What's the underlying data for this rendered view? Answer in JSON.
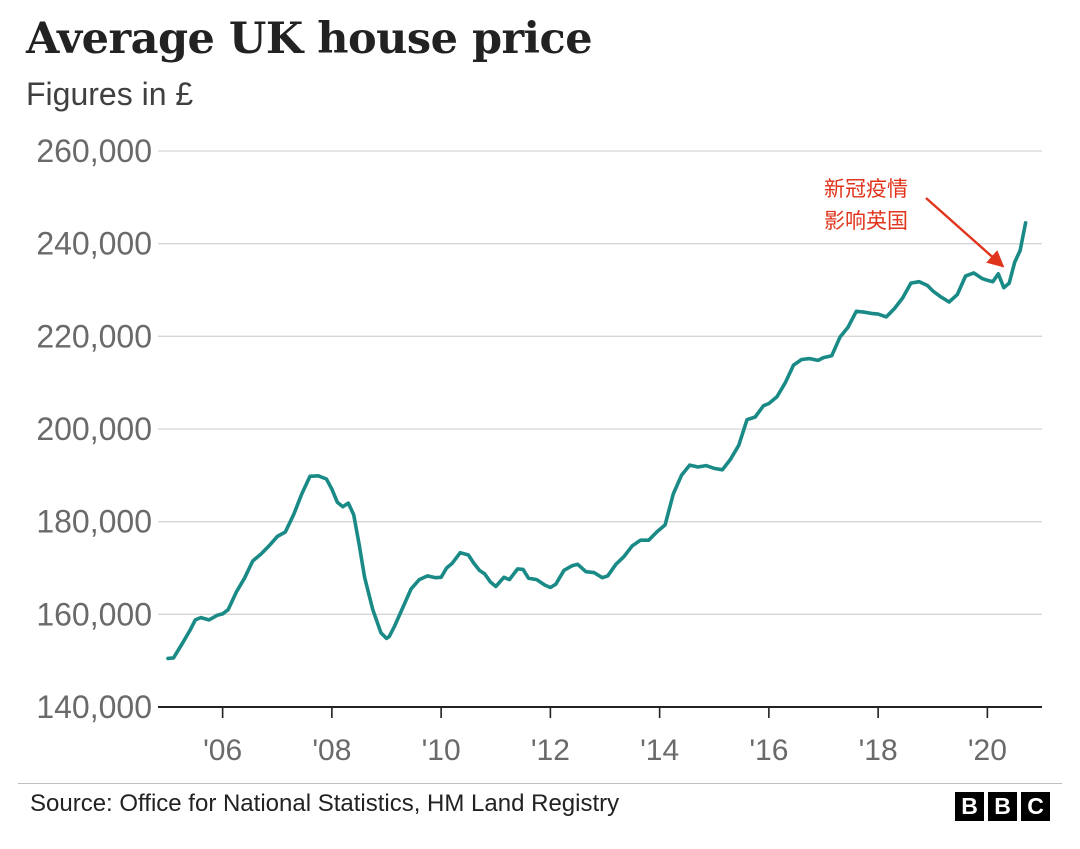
{
  "header": {
    "title": "Average UK house price",
    "subtitle": "Figures in £"
  },
  "footer": {
    "source": "Source: Office for National Statistics, HM Land Registry",
    "logo_letters": [
      "B",
      "B",
      "C"
    ]
  },
  "colors": {
    "line": "#1a8a86",
    "annotation": "#e0341c",
    "grid": "#d6d6d6",
    "axis": "#222222",
    "tick_text": "#6a6a6a"
  },
  "chart_data": {
    "type": "line",
    "title": "Average UK house price",
    "subtitle": "Figures in £",
    "xlabel": "",
    "ylabel": "",
    "xlim": [
      2005.0,
      2021.0
    ],
    "ylim": [
      140000,
      260000
    ],
    "y_ticks": [
      140000,
      160000,
      180000,
      200000,
      220000,
      240000,
      260000
    ],
    "y_tick_labels": [
      "140,000",
      "160,000",
      "180,000",
      "200,000",
      "220,000",
      "240,000",
      "260,000"
    ],
    "x_ticks": [
      2006,
      2008,
      2010,
      2012,
      2014,
      2016,
      2018,
      2020
    ],
    "x_tick_labels": [
      "'06",
      "'08",
      "'10",
      "'12",
      "'14",
      "'16",
      "'18",
      "'20"
    ],
    "grid": true,
    "series": [
      {
        "name": "Average UK house price",
        "x": [
          2005.0,
          2005.1,
          2005.25,
          2005.4,
          2005.5,
          2005.6,
          2005.75,
          2005.9,
          2006.0,
          2006.1,
          2006.25,
          2006.4,
          2006.55,
          2006.7,
          2006.85,
          2007.0,
          2007.15,
          2007.3,
          2007.45,
          2007.6,
          2007.75,
          2007.9,
          2008.0,
          2008.1,
          2008.2,
          2008.3,
          2008.4,
          2008.5,
          2008.6,
          2008.75,
          2008.9,
          2009.0,
          2009.05,
          2009.15,
          2009.3,
          2009.45,
          2009.6,
          2009.75,
          2009.9,
          2010.0,
          2010.1,
          2010.2,
          2010.35,
          2010.5,
          2010.6,
          2010.7,
          2010.8,
          2010.9,
          2011.0,
          2011.15,
          2011.25,
          2011.4,
          2011.5,
          2011.6,
          2011.75,
          2011.9,
          2012.0,
          2012.1,
          2012.25,
          2012.4,
          2012.5,
          2012.65,
          2012.8,
          2012.95,
          2013.05,
          2013.2,
          2013.35,
          2013.5,
          2013.65,
          2013.8,
          2013.95,
          2014.1,
          2014.25,
          2014.4,
          2014.55,
          2014.7,
          2014.85,
          2015.0,
          2015.15,
          2015.3,
          2015.45,
          2015.6,
          2015.75,
          2015.9,
          2016.0,
          2016.15,
          2016.3,
          2016.45,
          2016.6,
          2016.75,
          2016.9,
          2017.0,
          2017.15,
          2017.3,
          2017.45,
          2017.6,
          2017.75,
          2017.9,
          2018.0,
          2018.15,
          2018.3,
          2018.45,
          2018.6,
          2018.75,
          2018.9,
          2019.0,
          2019.15,
          2019.3,
          2019.45,
          2019.6,
          2019.75,
          2019.9,
          2020.0,
          2020.1,
          2020.2,
          2020.3,
          2020.4,
          2020.5,
          2020.6,
          2020.7
        ],
        "values": [
          150500,
          150600,
          153500,
          156500,
          158800,
          159300,
          158800,
          159800,
          160100,
          161000,
          164800,
          167800,
          171500,
          173000,
          174800,
          176800,
          177800,
          181500,
          186000,
          189800,
          189900,
          189200,
          187000,
          184200,
          183200,
          184000,
          181500,
          175000,
          168000,
          161000,
          156000,
          154800,
          155200,
          157500,
          161500,
          165500,
          167500,
          168300,
          167900,
          168000,
          170000,
          171000,
          173300,
          172800,
          171000,
          169500,
          168700,
          167000,
          166000,
          168000,
          167500,
          169800,
          169700,
          167800,
          167500,
          166300,
          165800,
          166500,
          169500,
          170500,
          170800,
          169200,
          169000,
          167900,
          168300,
          170800,
          172500,
          174800,
          176000,
          176000,
          177800,
          179300,
          186000,
          190000,
          192200,
          191800,
          192100,
          191500,
          191200,
          193500,
          196500,
          202000,
          202600,
          205000,
          205500,
          207000,
          210000,
          213800,
          215000,
          215200,
          214800,
          215400,
          215800,
          219800,
          222000,
          225400,
          225200,
          224900,
          224800,
          224200,
          226000,
          228300,
          231500,
          231800,
          231000,
          229800,
          228500,
          227400,
          229000,
          233000,
          233700,
          232500,
          232100,
          231800,
          233500,
          230500,
          231500,
          236000,
          238500,
          244500
        ]
      }
    ],
    "annotations": [
      {
        "text_lines": [
          "新冠疫情",
          "影响英国"
        ],
        "points_to": {
          "x": 2020.25,
          "y": 232500
        }
      }
    ]
  }
}
